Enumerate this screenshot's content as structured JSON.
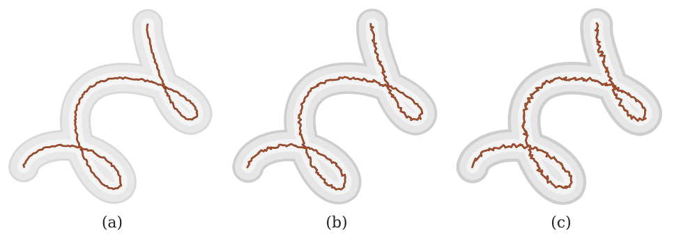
{
  "figure": {
    "panels": [
      {
        "label": "(a)",
        "surface": "smooth",
        "skeleton": "light-jitter"
      },
      {
        "label": "(b)",
        "surface": "rough",
        "skeleton": "medium-jitter"
      },
      {
        "label": "(c)",
        "surface": "rougher",
        "skeleton": "heavy-jitter"
      }
    ],
    "colors": {
      "tube_fill": "#e9e9e9",
      "tube_edge": "#b9b9b9",
      "skeleton": "#b8542a",
      "skeleton_dark": "#5a2412"
    }
  }
}
